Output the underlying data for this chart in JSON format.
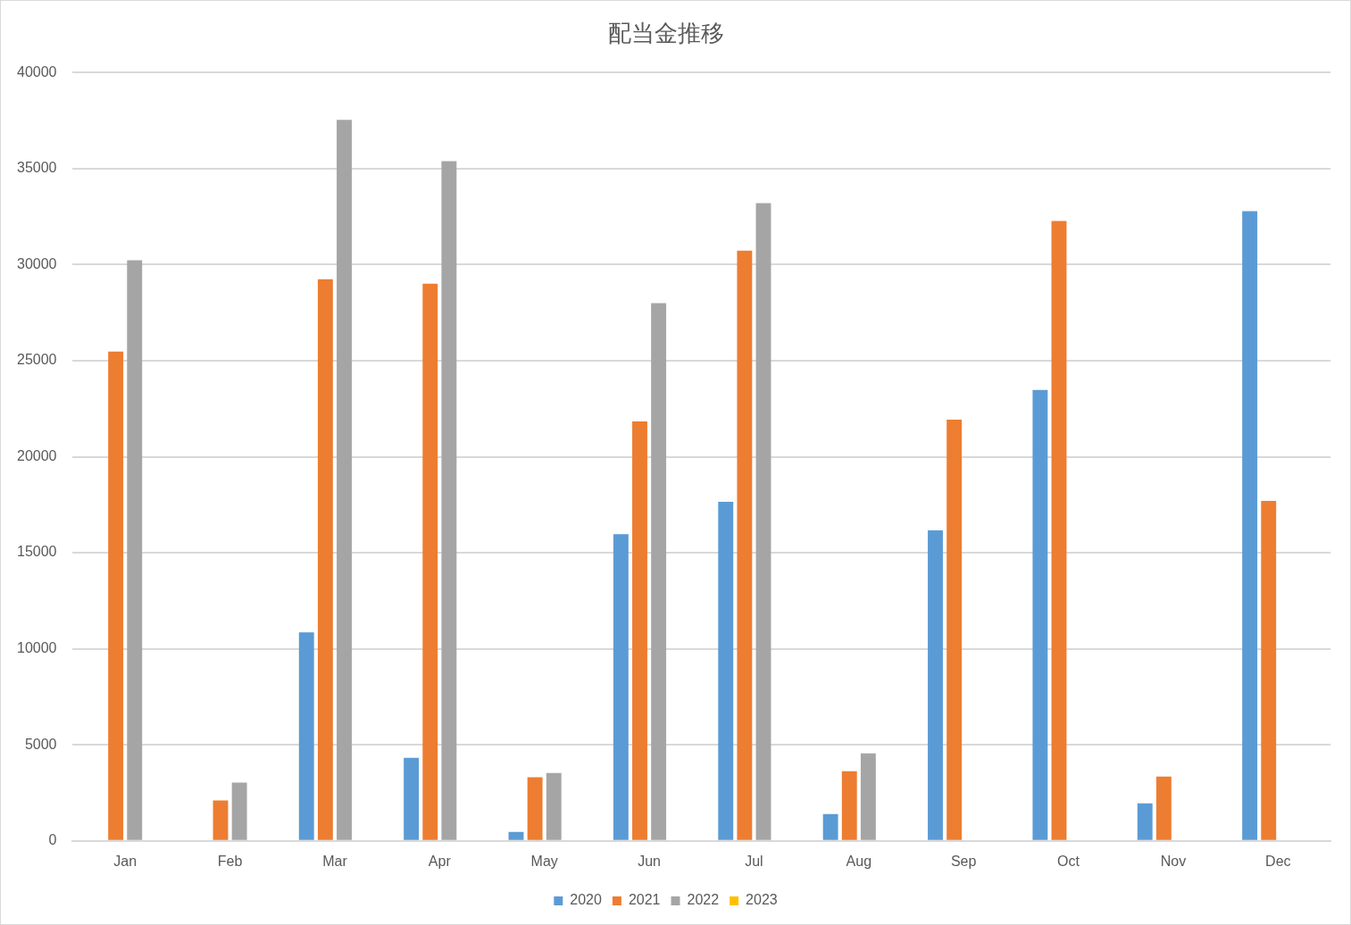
{
  "chart_data": {
    "type": "bar",
    "title": "配当金推移",
    "categories": [
      "Jan",
      "Feb",
      "Mar",
      "Apr",
      "May",
      "Jun",
      "Jul",
      "Aug",
      "Sep",
      "Oct",
      "Nov",
      "Dec"
    ],
    "series": [
      {
        "name": "2020",
        "color": "#5b9bd5",
        "values": [
          null,
          null,
          10850,
          4330,
          470,
          15970,
          17650,
          1400,
          16160,
          23470,
          1960,
          32780
        ]
      },
      {
        "name": "2021",
        "color": "#ed7d31",
        "values": [
          25470,
          2100,
          29240,
          29010,
          3310,
          21840,
          30730,
          3630,
          21930,
          32270,
          3350,
          17700
        ]
      },
      {
        "name": "2022",
        "color": "#a5a5a5",
        "values": [
          30220,
          3030,
          37530,
          35390,
          3540,
          27990,
          33200,
          4560,
          null,
          null,
          null,
          null
        ]
      },
      {
        "name": "2023",
        "color": "#ffc000",
        "values": [
          null,
          null,
          null,
          null,
          null,
          null,
          null,
          null,
          null,
          null,
          null,
          null
        ]
      }
    ],
    "ylim": [
      0,
      40000
    ],
    "yticks": [
      0,
      5000,
      10000,
      15000,
      20000,
      25000,
      30000,
      35000,
      40000
    ],
    "grid": "y",
    "legend": "bottom"
  }
}
